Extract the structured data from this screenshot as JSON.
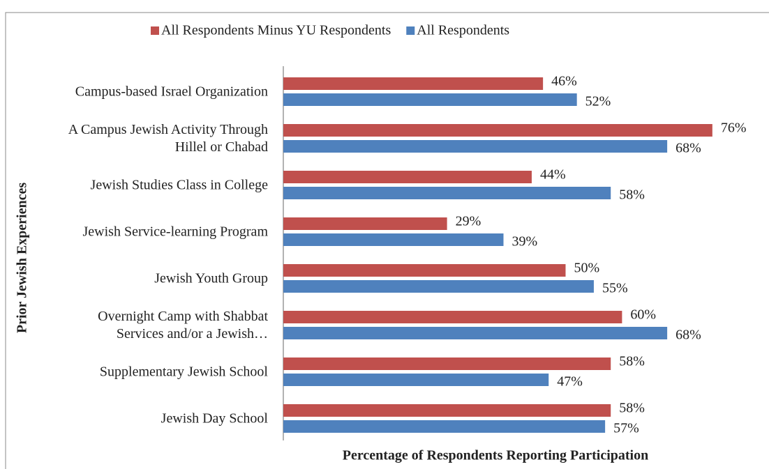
{
  "chart_data": {
    "type": "bar",
    "orientation": "horizontal",
    "x_label": "Percentage of Respondents Reporting Participation",
    "y_label": "Prior Jewish Experiences",
    "categories": [
      "Campus-based Israel Organization",
      "A Campus Jewish Activity Through\nHillel or Chabad",
      "Jewish Studies Class in College",
      "Jewish Service-learning Program",
      "Jewish Youth Group",
      "Overnight Camp with Shabbat\nServices and/or a Jewish…",
      "Supplementary Jewish School",
      "Jewish Day School"
    ],
    "series": [
      {
        "name": "All Respondents Minus YU Respondents",
        "color": "#c0504d",
        "values": [
          46,
          76,
          44,
          29,
          50,
          60,
          58,
          58
        ],
        "value_labels": [
          "46%",
          "76%",
          "44%",
          "29%",
          "50%",
          "60%",
          "58%",
          "58%"
        ]
      },
      {
        "name": "All Respondents",
        "color": "#4f81bd",
        "values": [
          52,
          68,
          58,
          39,
          55,
          68,
          47,
          57
        ],
        "value_labels": [
          "52%",
          "68%",
          "58%",
          "39%",
          "55%",
          "68%",
          "47%",
          "57%"
        ]
      }
    ],
    "xlim": [
      0,
      84
    ],
    "legend": "top"
  }
}
